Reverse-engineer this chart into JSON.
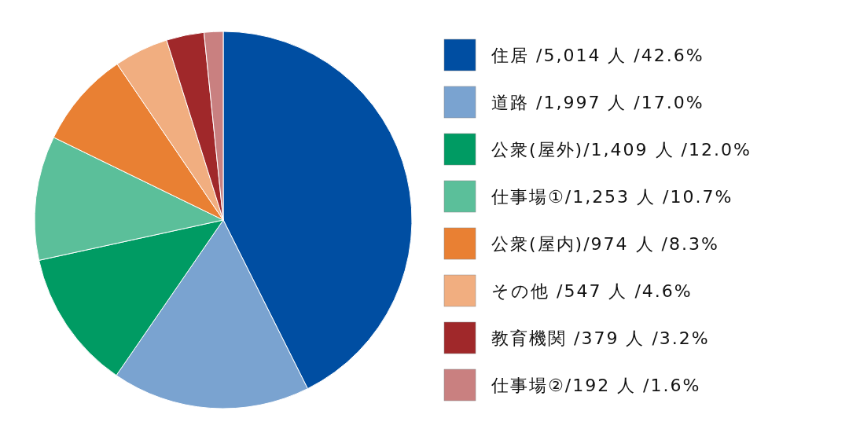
{
  "chart_data": {
    "type": "pie",
    "legend": "right",
    "categories": [
      "住居 /5,014 人 /42.6%",
      "道路 /1,997 人 /17.0%",
      "公衆(屋外)/1,409 人 /12.0%",
      "仕事場①/1,253 人 /10.7%",
      "公衆(屋内)/974 人 /8.3%",
      "その他 /547 人 /4.6%",
      "教育機関 /379 人 /3.2%",
      "仕事場②/192 人 /1.6%"
    ],
    "values": [
      5014,
      1997,
      1409,
      1253,
      974,
      547,
      379,
      192
    ],
    "colors": [
      "#004ea2",
      "#7aa3d0",
      "#009b63",
      "#5bbf9a",
      "#e98033",
      "#f1ae80",
      "#a0282a",
      "#c98080"
    ]
  }
}
